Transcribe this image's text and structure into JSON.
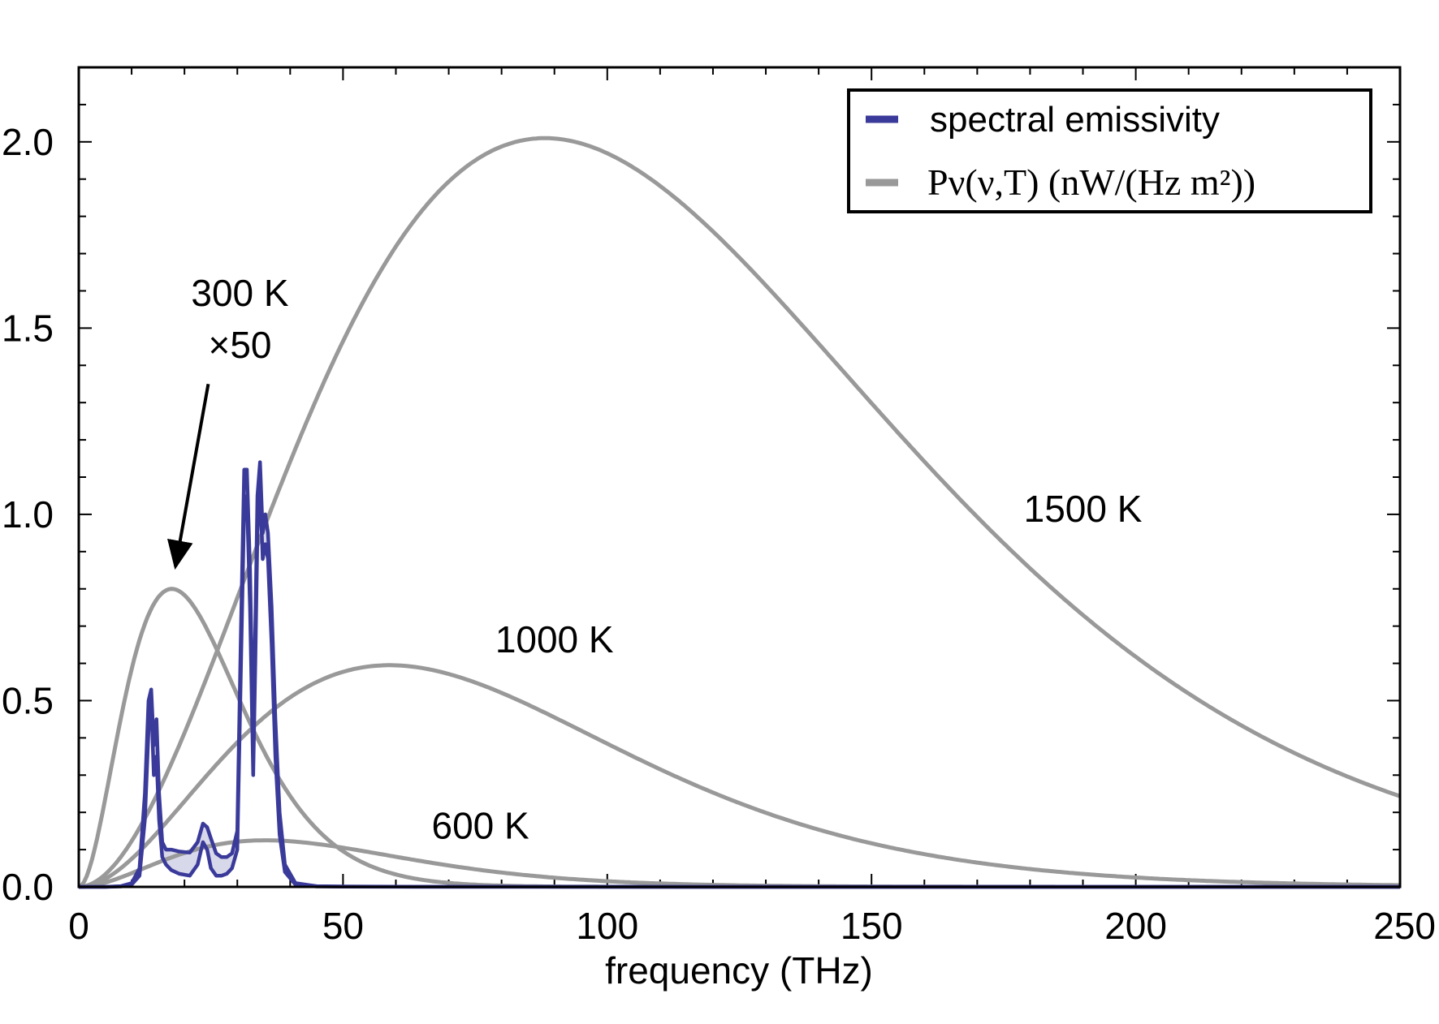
{
  "chart_data": {
    "type": "line",
    "title": "",
    "xlabel": "frequency (THz)",
    "ylabel": "",
    "xlim": [
      0,
      250
    ],
    "ylim": [
      0,
      2.2
    ],
    "x_ticks": [
      0,
      50,
      100,
      150,
      200,
      250
    ],
    "y_ticks": [
      0.0,
      0.5,
      1.0,
      1.5,
      2.0
    ],
    "x_tick_labels": [
      "0",
      "50",
      "100",
      "150",
      "200",
      "250"
    ],
    "y_tick_labels": [
      "0.0",
      "0.5",
      "1.0",
      "1.5",
      "2.0"
    ],
    "legend": {
      "position": "top-right",
      "entries": [
        {
          "label": "spectral emissivity",
          "color": "#3a3a9a"
        },
        {
          "label": "Pν(ν,T) (nW/(Hz m²))",
          "color": "#999999"
        }
      ]
    },
    "series": [
      {
        "name": "300 K ×50",
        "kind": "planck",
        "temperature": 300,
        "scale": 50,
        "peak_x": 17.6,
        "peak_y": 0.8,
        "color": "#999999"
      },
      {
        "name": "600 K",
        "kind": "planck",
        "temperature": 600,
        "scale": 1,
        "peak_x": 35.3,
        "peak_y": 0.125,
        "color": "#999999"
      },
      {
        "name": "1000 K",
        "kind": "planck",
        "temperature": 1000,
        "scale": 1,
        "peak_x": 58.8,
        "peak_y": 0.595,
        "color": "#999999"
      },
      {
        "name": "1500 K",
        "kind": "planck",
        "temperature": 1500,
        "scale": 1,
        "peak_x": 88.2,
        "peak_y": 2.01,
        "color": "#999999"
      },
      {
        "name": "spectral emissivity (upper)",
        "kind": "emissivity",
        "color": "#3a3a9a",
        "x": [
          0,
          5,
          8,
          10,
          11.5,
          12.5,
          13.2,
          13.7,
          14.2,
          14.7,
          15.2,
          15.8,
          16.5,
          17.5,
          19,
          21,
          22.5,
          23.5,
          24.3,
          25,
          26,
          27,
          28,
          29,
          30,
          30.7,
          31.3,
          31.8,
          32.4,
          33,
          33.4,
          33.8,
          34.3,
          34.8,
          35.3,
          35.8,
          36.5,
          37.2,
          38,
          39,
          41,
          45,
          50,
          60,
          80,
          100,
          150,
          250
        ],
        "y": [
          0,
          0,
          0.002,
          0.01,
          0.05,
          0.25,
          0.5,
          0.53,
          0.38,
          0.45,
          0.25,
          0.12,
          0.1,
          0.1,
          0.095,
          0.092,
          0.12,
          0.17,
          0.16,
          0.13,
          0.09,
          0.08,
          0.08,
          0.09,
          0.15,
          0.7,
          1.12,
          1.12,
          0.85,
          0.4,
          0.7,
          1.05,
          1.14,
          0.95,
          1.0,
          0.95,
          0.75,
          0.45,
          0.2,
          0.06,
          0.01,
          0.002,
          0.001,
          0.0005,
          0.0003,
          0.0002,
          0.0001,
          0
        ]
      },
      {
        "name": "spectral emissivity (lower)",
        "kind": "emissivity",
        "color": "#3a3a9a",
        "x": [
          0,
          5,
          8,
          10,
          11.5,
          12.5,
          13.2,
          13.7,
          14.2,
          14.7,
          15.2,
          15.8,
          16.5,
          17.5,
          19,
          21,
          22.5,
          23.5,
          24.3,
          25,
          26,
          27,
          28,
          29,
          30,
          30.7,
          31.3,
          31.8,
          32.4,
          33,
          33.4,
          33.8,
          34.3,
          34.8,
          35.3,
          35.8,
          36.5,
          37.2,
          38,
          39,
          41,
          45,
          50,
          60,
          80,
          100,
          150,
          250
        ],
        "y": [
          0,
          0,
          0.001,
          0.006,
          0.03,
          0.18,
          0.42,
          0.5,
          0.3,
          0.35,
          0.18,
          0.08,
          0.06,
          0.045,
          0.035,
          0.03,
          0.06,
          0.12,
          0.1,
          0.05,
          0.03,
          0.03,
          0.035,
          0.05,
          0.1,
          0.6,
          1.02,
          1.05,
          0.75,
          0.3,
          0.6,
          0.95,
          1.08,
          0.88,
          0.92,
          0.88,
          0.65,
          0.35,
          0.14,
          0.04,
          0.006,
          0.001,
          0.0005,
          0.0003,
          0.0002,
          0.0001,
          5e-05,
          0
        ]
      }
    ],
    "annotations": [
      {
        "text": "300 K",
        "x": 30.5,
        "y": 1.56
      },
      {
        "text": "×50",
        "x": 30.5,
        "y": 1.42
      },
      {
        "text": "1500 K",
        "x": 190,
        "y": 0.98
      },
      {
        "text": "1000 K",
        "x": 90,
        "y": 0.63
      },
      {
        "text": "600 K",
        "x": 76,
        "y": 0.13
      }
    ],
    "arrow": {
      "from": [
        24.5,
        1.35
      ],
      "to": [
        18.3,
        0.86
      ]
    }
  }
}
